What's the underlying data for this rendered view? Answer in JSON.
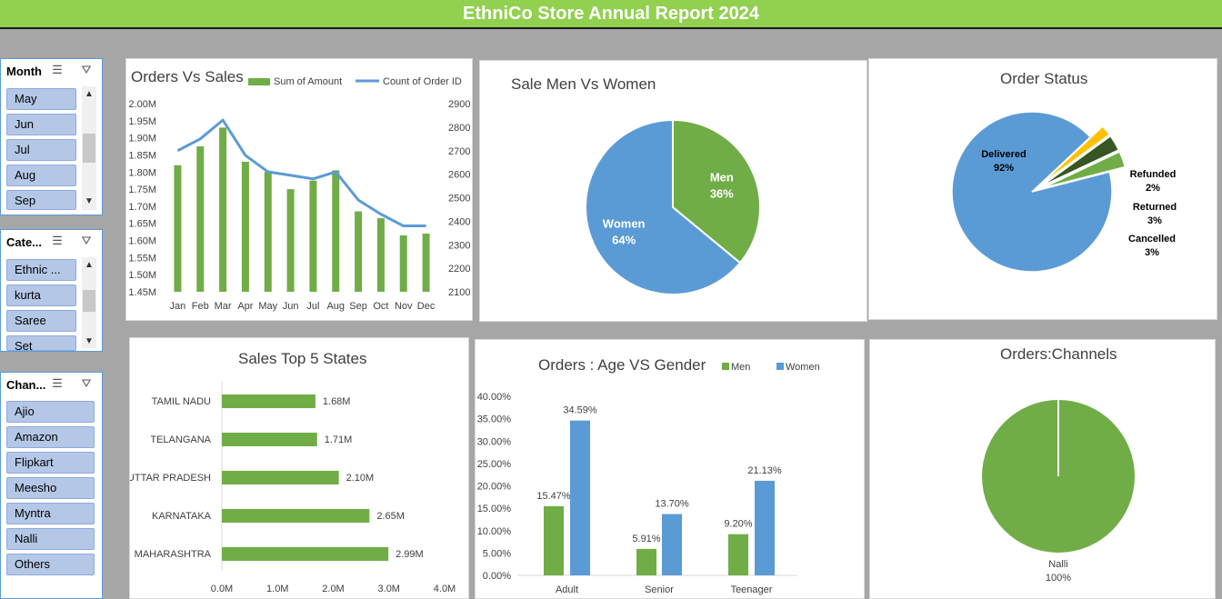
{
  "title": "EthniCo Store Annual Report 2024",
  "colors": {
    "green": "#70ad47",
    "blue": "#5b9bd5",
    "title_bg": "#92d050",
    "dark_green": "#375623",
    "yellow": "#ffc000"
  },
  "slicers": [
    {
      "header": "Month",
      "items": [
        "May",
        "Jun",
        "Jul",
        "Aug",
        "Sep"
      ],
      "has_scroll": true
    },
    {
      "header": "Cate...",
      "items": [
        "Ethnic ...",
        "kurta",
        "Saree",
        "Set"
      ],
      "has_scroll": true
    },
    {
      "header": "Chan...",
      "items": [
        "Ajio",
        "Amazon",
        "Flipkart",
        "Meesho",
        "Myntra",
        "Nalli",
        "Others"
      ],
      "has_scroll": false
    }
  ],
  "charts": {
    "orders_vs_sales": {
      "title": "Orders Vs Sales",
      "legend": [
        "Sum of Amount",
        "Count of Order ID"
      ],
      "left_ticks": [
        "2.00M",
        "1.95M",
        "1.90M",
        "1.85M",
        "1.80M",
        "1.75M",
        "1.70M",
        "1.65M",
        "1.60M",
        "1.55M",
        "1.50M",
        "1.45M"
      ],
      "right_ticks": [
        "2900",
        "2800",
        "2700",
        "2600",
        "2500",
        "2400",
        "2300",
        "2200",
        "2100"
      ]
    },
    "men_women": {
      "title": "Sale Men Vs Women"
    },
    "order_status": {
      "title": "Order Status"
    },
    "top_states": {
      "title": "Sales Top 5 States",
      "x_ticks": [
        "0.0M",
        "1.0M",
        "2.0M",
        "3.0M",
        "4.0M"
      ]
    },
    "age_gender": {
      "title": "Orders : Age VS Gender",
      "legend": [
        "Men",
        "Women"
      ],
      "y_ticks": [
        "40.00%",
        "35.00%",
        "30.00%",
        "25.00%",
        "20.00%",
        "15.00%",
        "10.00%",
        "5.00%",
        "0.00%"
      ]
    },
    "channels": {
      "title": "Orders:Channels"
    }
  },
  "chart_data": [
    {
      "type": "bar",
      "title": "Orders Vs Sales",
      "categories": [
        "Jan",
        "Feb",
        "Mar",
        "Apr",
        "May",
        "Jun",
        "Jul",
        "Aug",
        "Sep",
        "Oct",
        "Nov",
        "Dec"
      ],
      "series": [
        {
          "name": "Sum of Amount",
          "values": [
            1.82,
            1.875,
            1.93,
            1.83,
            1.8,
            1.75,
            1.775,
            1.805,
            1.685,
            1.665,
            1.615,
            1.62
          ]
        },
        {
          "name": "Count of Order ID",
          "values": [
            2700,
            2750,
            2830,
            2680,
            2610,
            2595,
            2580,
            2610,
            2490,
            2430,
            2380,
            2380
          ]
        }
      ],
      "ylim": [
        1.45,
        2.0
      ],
      "y2lim": [
        2100,
        2900
      ]
    },
    {
      "type": "pie",
      "title": "Sale Men Vs Women",
      "labels": [
        "Men",
        "Women"
      ],
      "values": [
        36,
        64
      ],
      "value_labels": [
        "36%",
        "64%"
      ]
    },
    {
      "type": "pie",
      "title": "Order Status",
      "labels": [
        "Delivered",
        "Refunded",
        "Returned",
        "Cancelled"
      ],
      "values": [
        92,
        2,
        3,
        3
      ],
      "value_labels": [
        "92%",
        "2%",
        "3%",
        "3%"
      ]
    },
    {
      "type": "bar",
      "title": "Sales Top 5 States",
      "categories": [
        "TAMIL NADU",
        "TELANGANA",
        "UTTAR PRADESH",
        "KARNATAKA",
        "MAHARASHTRA"
      ],
      "values": [
        1.68,
        1.71,
        2.1,
        2.65,
        2.99
      ],
      "value_labels": [
        "1.68M",
        "1.71M",
        "2.10M",
        "2.65M",
        "2.99M"
      ],
      "xlim": [
        0,
        4
      ]
    },
    {
      "type": "bar",
      "title": "Orders : Age VS Gender",
      "categories": [
        "Adult",
        "Senior",
        "Teenager"
      ],
      "series": [
        {
          "name": "Men",
          "values": [
            15.47,
            5.91,
            9.2
          ],
          "value_labels": [
            "15.47%",
            "5.91%",
            "9.20%"
          ]
        },
        {
          "name": "Women",
          "values": [
            34.59,
            13.7,
            21.13
          ],
          "value_labels": [
            "34.59%",
            "13.70%",
            "21.13%"
          ]
        }
      ],
      "ylim": [
        0,
        40
      ]
    },
    {
      "type": "pie",
      "title": "Orders:Channels",
      "labels": [
        "Nalli"
      ],
      "values": [
        100
      ],
      "value_labels": [
        "100%"
      ]
    }
  ]
}
